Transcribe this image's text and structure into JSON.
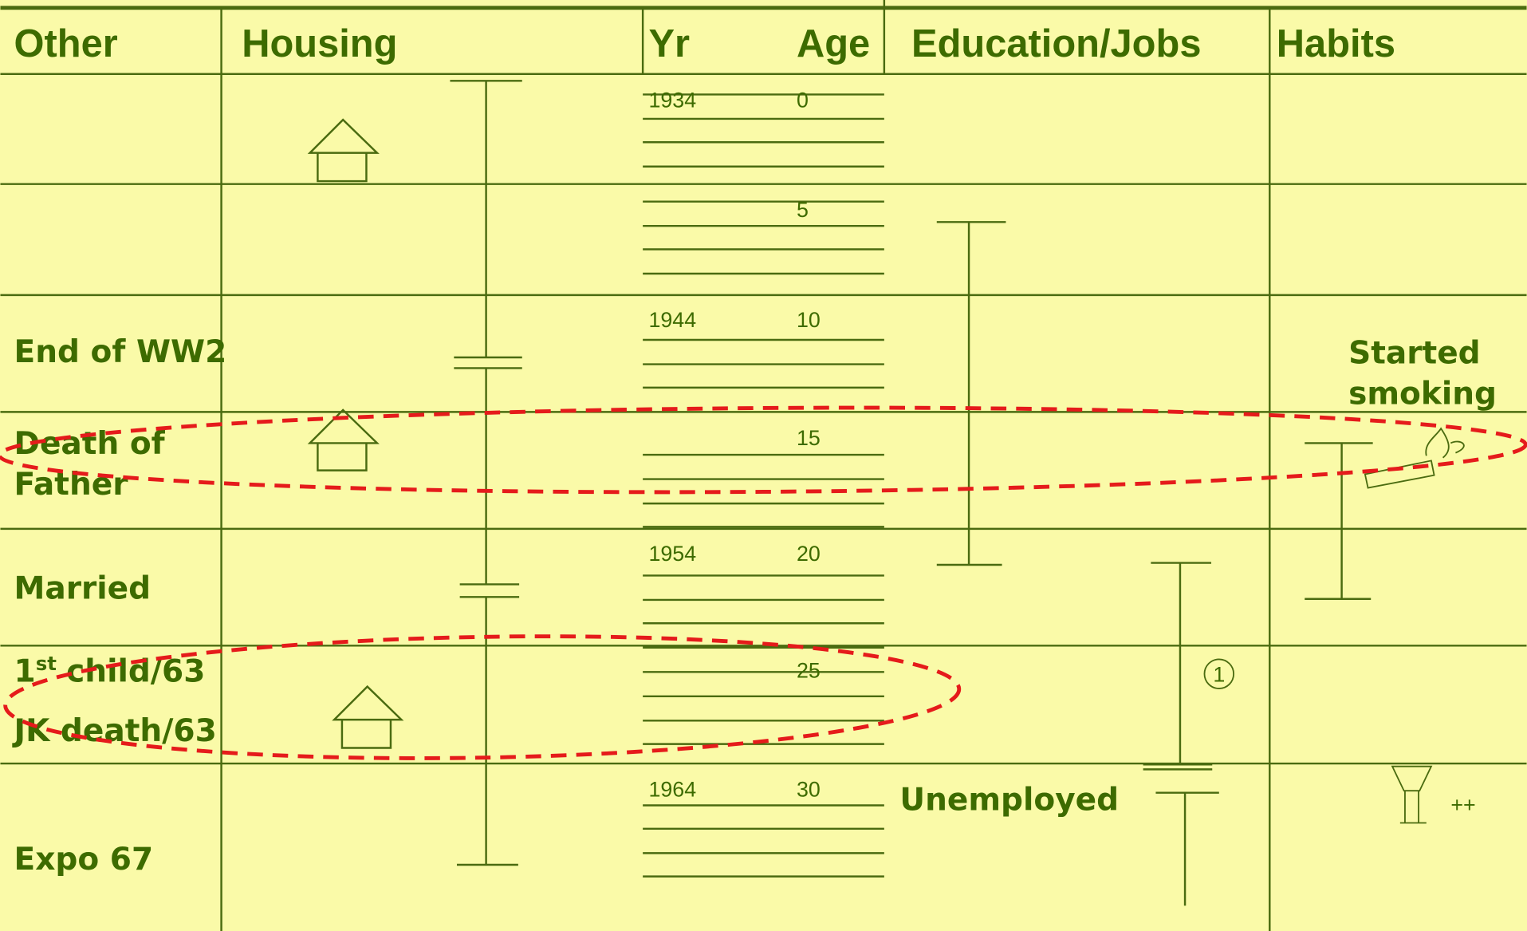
{
  "header": {
    "columns": [
      "Other",
      "Housing",
      "Yr",
      "Age",
      "Education/Jobs",
      "Habits"
    ]
  },
  "timeline": {
    "years": [
      "1934",
      "1944",
      "1954",
      "1964"
    ],
    "ages": [
      "0",
      "5",
      "10",
      "15",
      "20",
      "25",
      "30"
    ]
  },
  "other": {
    "ww2": "End of WW2",
    "father": [
      "Death of",
      "Father"
    ],
    "married": "Married",
    "child": {
      "number": "1",
      "suffix": "st",
      "rest": "child/63"
    },
    "jk": "JK death/63",
    "expo": "Expo 67"
  },
  "education": {
    "circle": "1",
    "unemployed": "Unemployed"
  },
  "habits": {
    "smoking": [
      "Started",
      "smoking"
    ],
    "drinking": "++"
  }
}
